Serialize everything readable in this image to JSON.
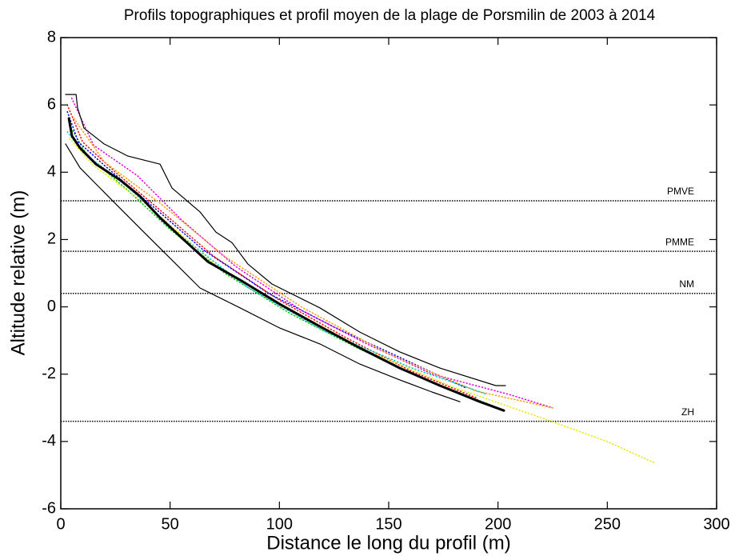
{
  "chart_data": {
    "type": "line",
    "title": "Profils topographiques et profil moyen de la plage de Porsmilin de 2003 à 2014",
    "xlabel": "Distance le long du profil (m)",
    "ylabel": "Altitude relative (m)",
    "xlim": [
      0,
      300
    ],
    "ylim": [
      -6,
      8
    ],
    "xticks": [
      0,
      50,
      100,
      150,
      200,
      250,
      300
    ],
    "yticks": [
      -6,
      -4,
      -2,
      0,
      2,
      4,
      6,
      8
    ],
    "reference_lines": [
      {
        "label": "PMVE",
        "value": 3.15
      },
      {
        "label": "PMME",
        "value": 1.65
      },
      {
        "label": "NM",
        "value": 0.4
      },
      {
        "label": "ZH",
        "value": -3.4
      }
    ],
    "series": [
      {
        "color": "#ff0000",
        "style": "dotted",
        "x": [
          3,
          10,
          25,
          45,
          70,
          100,
          130,
          160,
          190
        ],
        "values": [
          6.0,
          4.9,
          4.0,
          2.9,
          1.5,
          0.2,
          -0.9,
          -1.9,
          -2.7
        ]
      },
      {
        "color": "#00c000",
        "style": "dotted",
        "x": [
          4,
          12,
          30,
          50,
          75,
          105,
          135,
          165,
          200
        ],
        "values": [
          5.4,
          4.5,
          3.5,
          2.3,
          1.0,
          -0.2,
          -1.2,
          -2.1,
          -3.0
        ]
      },
      {
        "color": "#0000ff",
        "style": "dotted",
        "x": [
          3,
          8,
          20,
          40,
          65,
          95,
          125,
          155,
          185
        ],
        "values": [
          5.8,
          4.9,
          4.2,
          3.1,
          1.7,
          0.4,
          -0.6,
          -1.5,
          -2.4
        ]
      },
      {
        "color": "#e000e0",
        "style": "dotted",
        "x": [
          5,
          15,
          35,
          55,
          80,
          110,
          140,
          170,
          205,
          225
        ],
        "values": [
          6.2,
          4.8,
          3.9,
          2.6,
          1.2,
          -0.1,
          -1.1,
          -2.0,
          -2.6,
          -3.0
        ]
      },
      {
        "color": "#e8e800",
        "style": "dotted",
        "x": [
          4,
          15,
          40,
          70,
          100,
          140,
          180,
          220,
          250,
          272
        ],
        "values": [
          5.0,
          4.2,
          3.0,
          1.3,
          0.1,
          -1.3,
          -2.4,
          -3.3,
          -4.0,
          -4.65
        ]
      },
      {
        "color": "#ff9900",
        "style": "dotted",
        "x": [
          6,
          20,
          45,
          75,
          110,
          150,
          190,
          225
        ],
        "values": [
          5.6,
          4.3,
          3.1,
          1.5,
          0.0,
          -1.4,
          -2.5,
          -3.0
        ]
      },
      {
        "color": "#00c8c8",
        "style": "dotted",
        "x": [
          3,
          10,
          30,
          55,
          85,
          120,
          160,
          195
        ],
        "values": [
          5.2,
          4.6,
          3.6,
          2.1,
          0.6,
          -0.7,
          -1.8,
          -2.6
        ]
      },
      {
        "color": "#000000",
        "style": "solid",
        "width": 1.2,
        "x": [
          2.2,
          7,
          7.7,
          10.6,
          19.8,
          30.7,
          45.4,
          50.9,
          63.7,
          71,
          78.3,
          85.6,
          96.6,
          118.5,
          136.8,
          155.1,
          173.4,
          199,
          203.4
        ],
        "values": [
          6.31,
          6.31,
          5.91,
          5.31,
          4.84,
          4.48,
          4.24,
          3.53,
          2.82,
          2.22,
          1.91,
          1.27,
          0.68,
          -0.03,
          -0.75,
          -1.34,
          -1.82,
          -2.34,
          -2.34
        ]
      },
      {
        "color": "#000000",
        "style": "solid",
        "width": 1.2,
        "x": [
          2.2,
          8.8,
          23.4,
          38,
          52.7,
          63.7,
          82,
          100.2,
          118.5,
          136.8,
          155.1,
          169.8,
          182.6
        ],
        "values": [
          4.84,
          4.13,
          3.17,
          2.22,
          1.27,
          0.56,
          -0.03,
          -0.63,
          -1.1,
          -1.7,
          -2.17,
          -2.53,
          -2.82
        ]
      },
      {
        "color": "#000000",
        "style": "solid",
        "width": 3,
        "x": [
          3.7,
          5.1,
          8.8,
          16.1,
          27.1,
          36.2,
          45.4,
          56.3,
          67.3,
          82,
          100.2,
          118.5,
          136.8,
          155.1,
          173.4,
          191.7,
          202.7
        ],
        "values": [
          5.6,
          5.08,
          4.72,
          4.24,
          3.77,
          3.29,
          2.65,
          1.99,
          1.34,
          0.8,
          0.08,
          -0.58,
          -1.22,
          -1.82,
          -2.34,
          -2.82,
          -3.08
        ]
      }
    ]
  }
}
